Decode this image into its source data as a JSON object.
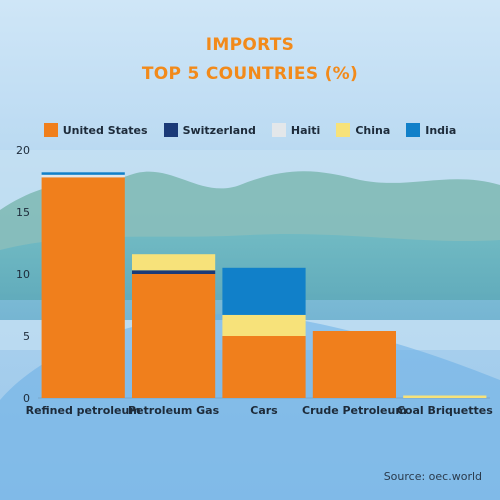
{
  "title_line1": "IMPORTS",
  "title_line2": "TOP 5 COUNTRIES (%)",
  "source": "Source: oec.world",
  "colors": {
    "United States": "#f07f1c",
    "Switzerland": "#1b3a78",
    "Haiti": "#e3e7ea",
    "China": "#f7e27a",
    "India": "#1180c9"
  },
  "chart_data": {
    "type": "bar",
    "stacked": true,
    "categories": [
      "Refined petroleum",
      "Petroleum Gas",
      "Cars",
      "Crude Petroleum",
      "Coal Briquettes"
    ],
    "series": [
      {
        "name": "United States",
        "values": [
          17.8,
          10.0,
          5.0,
          5.4,
          0.0
        ]
      },
      {
        "name": "Switzerland",
        "values": [
          0.0,
          0.3,
          0.0,
          0.0,
          0.0
        ]
      },
      {
        "name": "Haiti",
        "values": [
          0.2,
          0.0,
          0.0,
          0.0,
          0.0
        ]
      },
      {
        "name": "China",
        "values": [
          0.0,
          1.3,
          1.7,
          0.0,
          0.2
        ]
      },
      {
        "name": "India",
        "values": [
          0.2,
          0.0,
          3.8,
          0.0,
          0.0
        ]
      }
    ],
    "ylim": [
      0,
      20
    ],
    "yticks": [
      0,
      5,
      10,
      15,
      20
    ],
    "grid": false,
    "legend_position": "top"
  }
}
